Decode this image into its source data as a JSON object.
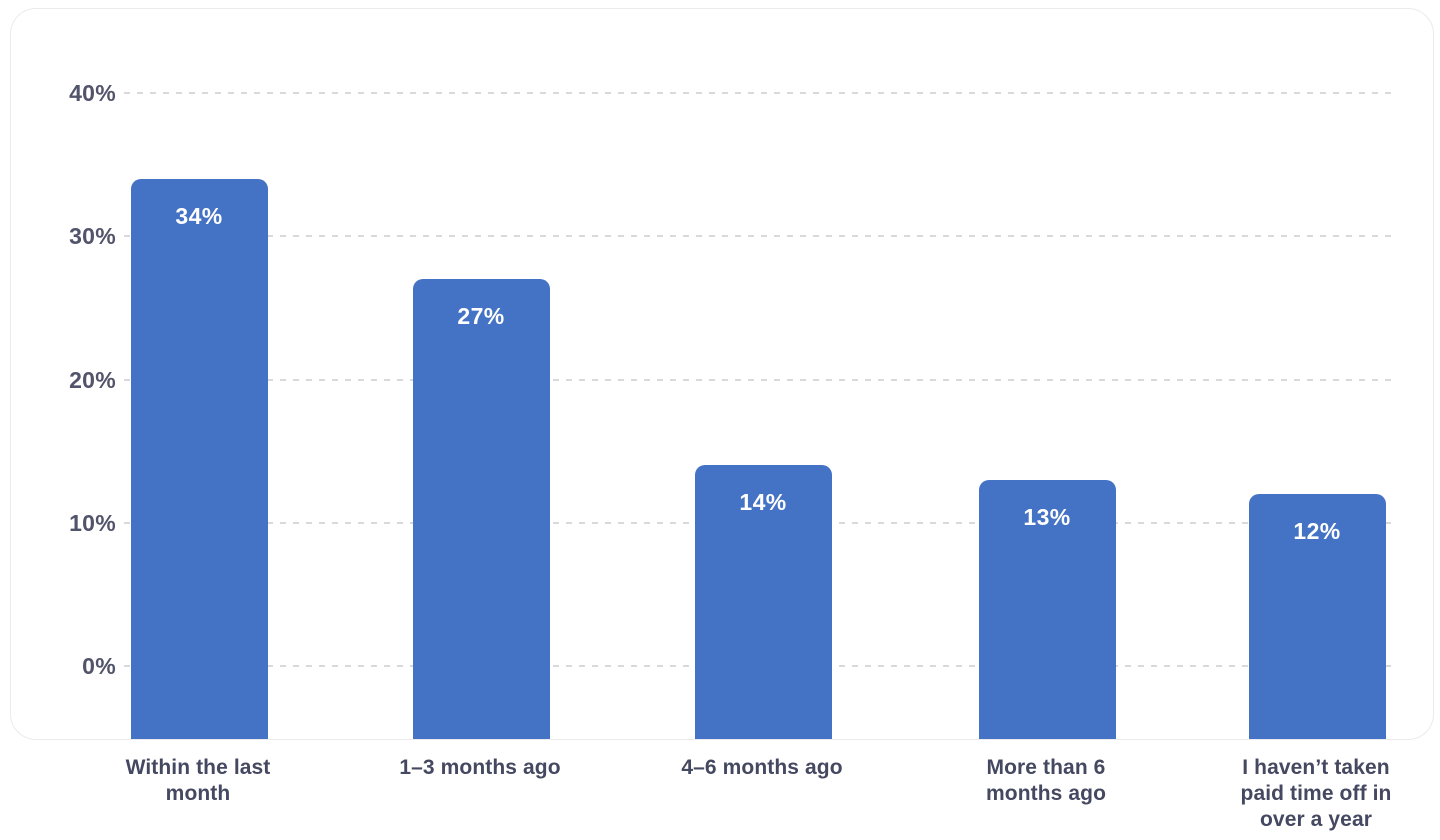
{
  "colors": {
    "background": "#ffffff",
    "bar": "#4472c5",
    "card_border": "#ebebed",
    "grid": "#d9d9db",
    "y_tick_text": "#51546a",
    "x_label_text": "#454861",
    "value_text": "#ffffff"
  },
  "chart_data": {
    "type": "bar",
    "title": "",
    "xlabel": "",
    "ylabel": "",
    "categories": [
      "Within the last month",
      "1–3 months ago",
      "4–6 months ago",
      "More than 6 months ago",
      "I haven’t taken paid time off in over a year"
    ],
    "values": [
      34,
      27,
      14,
      13,
      12
    ],
    "value_labels": [
      "34%",
      "27%",
      "14%",
      "13%",
      "12%"
    ],
    "y_axis": {
      "tick_values": [
        0,
        10,
        20,
        30,
        40
      ],
      "tick_labels": [
        "0%",
        "10%",
        "20%",
        "30%",
        "40%"
      ],
      "shown_range": [
        0,
        40
      ]
    },
    "legend": "none",
    "grid": "horizontal-dashed",
    "bar_labels_position": "inside-top"
  }
}
